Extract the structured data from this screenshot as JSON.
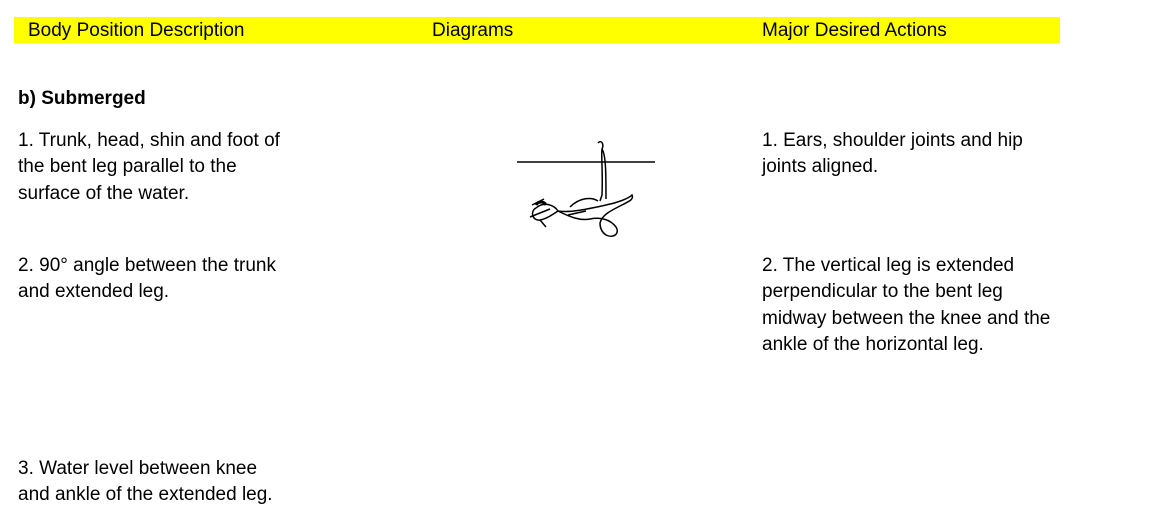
{
  "header": {
    "columns": [
      "Body Position Description",
      "Diagrams",
      "Major Desired Actions"
    ]
  },
  "section": {
    "title": "b)  Submerged",
    "rows": [
      {
        "position": [
          "1. Trunk, head, shin and foot of",
          "the bent leg parallel to the",
          "surface of the water."
        ],
        "actions": [
          "1. Ears, shoulder joints and hip",
          "joints aligned."
        ]
      },
      {
        "position": [
          "2.  90° angle between the trunk",
          "and extended leg."
        ],
        "actions": [
          "2. The vertical leg is extended",
          "perpendicular to the bent leg",
          "midway between the knee and the",
          "ankle of the horizontal leg."
        ]
      },
      {
        "position": [
          "3.  Water level between knee",
          "and ankle of the extended leg."
        ],
        "actions": []
      }
    ]
  }
}
